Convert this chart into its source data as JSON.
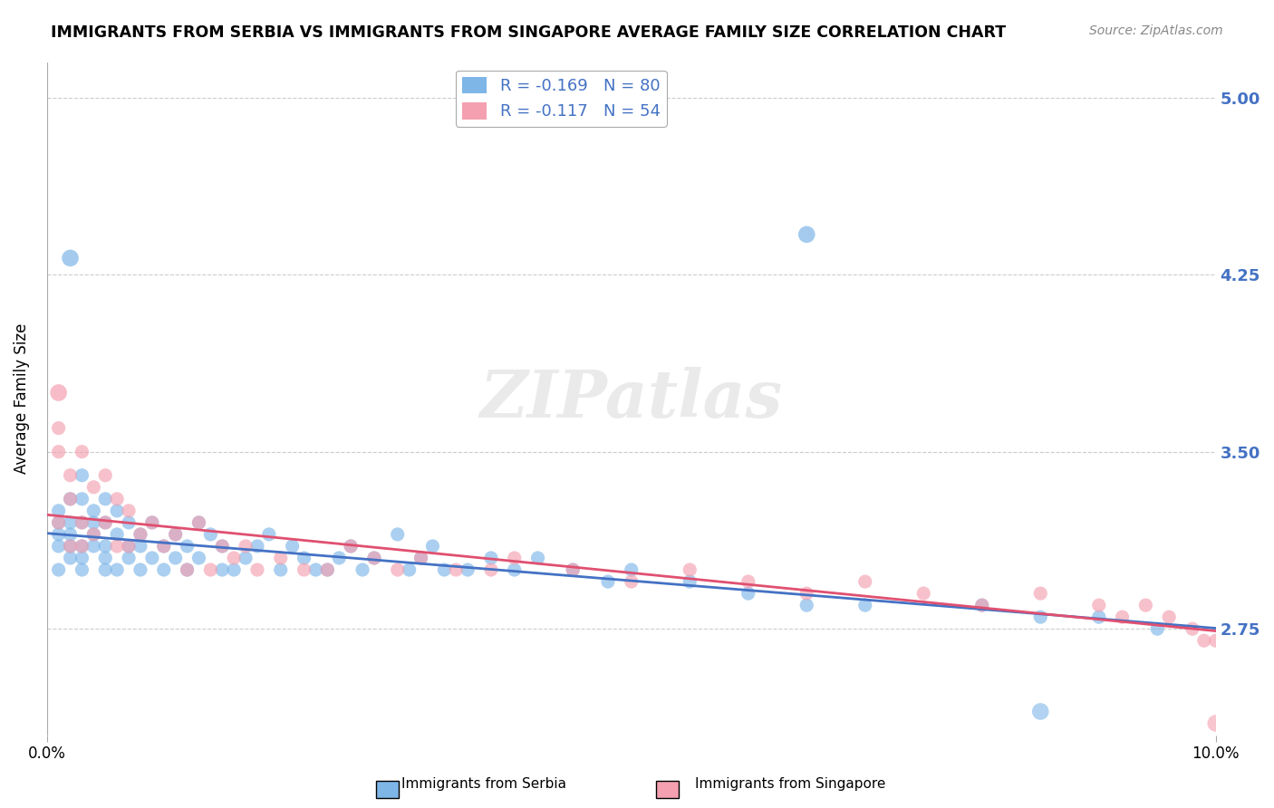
{
  "title": "IMMIGRANTS FROM SERBIA VS IMMIGRANTS FROM SINGAPORE AVERAGE FAMILY SIZE CORRELATION CHART",
  "source_text": "Source: ZipAtlas.com",
  "xlabel": "",
  "ylabel": "Average Family Size",
  "xlim": [
    0.0,
    0.1
  ],
  "ylim": [
    2.3,
    5.15
  ],
  "yticks": [
    2.75,
    3.5,
    4.25,
    5.0
  ],
  "xticks": [
    0.0,
    0.1
  ],
  "xtick_labels": [
    "0.0%",
    "10.0%"
  ],
  "serbia_color": "#7EB6E8",
  "singapore_color": "#F4A0B0",
  "serbia_line_color": "#4472C4",
  "singapore_line_color": "#E05070",
  "serbia_label": "Immigrants from Serbia",
  "singapore_label": "Immigrants from Singapore",
  "serbia_R": -0.169,
  "serbia_N": 80,
  "singapore_R": -0.117,
  "singapore_N": 54,
  "serbia_x": [
    0.001,
    0.001,
    0.001,
    0.001,
    0.001,
    0.002,
    0.002,
    0.002,
    0.002,
    0.002,
    0.003,
    0.003,
    0.003,
    0.003,
    0.003,
    0.003,
    0.004,
    0.004,
    0.004,
    0.004,
    0.005,
    0.005,
    0.005,
    0.005,
    0.005,
    0.006,
    0.006,
    0.006,
    0.007,
    0.007,
    0.007,
    0.008,
    0.008,
    0.008,
    0.009,
    0.009,
    0.01,
    0.01,
    0.011,
    0.011,
    0.012,
    0.012,
    0.013,
    0.013,
    0.014,
    0.015,
    0.015,
    0.016,
    0.017,
    0.018,
    0.019,
    0.02,
    0.021,
    0.022,
    0.023,
    0.024,
    0.025,
    0.026,
    0.027,
    0.028,
    0.03,
    0.031,
    0.032,
    0.033,
    0.034,
    0.036,
    0.038,
    0.04,
    0.042,
    0.045,
    0.048,
    0.05,
    0.055,
    0.06,
    0.065,
    0.07,
    0.08,
    0.085,
    0.09,
    0.095
  ],
  "serbia_y": [
    3.2,
    3.0,
    3.1,
    3.15,
    3.25,
    3.3,
    3.2,
    3.1,
    3.05,
    3.15,
    3.3,
    3.4,
    3.1,
    3.2,
    3.05,
    3.0,
    3.2,
    3.15,
    3.25,
    3.1,
    3.3,
    3.2,
    3.1,
    3.05,
    3.0,
    3.25,
    3.15,
    3.0,
    3.2,
    3.1,
    3.05,
    3.15,
    3.0,
    3.1,
    3.2,
    3.05,
    3.1,
    3.0,
    3.15,
    3.05,
    3.1,
    3.0,
    3.05,
    3.2,
    3.15,
    3.1,
    3.0,
    3.0,
    3.05,
    3.1,
    3.15,
    3.0,
    3.1,
    3.05,
    3.0,
    3.0,
    3.05,
    3.1,
    3.0,
    3.05,
    3.15,
    3.0,
    3.05,
    3.1,
    3.0,
    3.0,
    3.05,
    3.0,
    3.05,
    3.0,
    2.95,
    3.0,
    2.95,
    2.9,
    2.85,
    2.85,
    2.85,
    2.8,
    2.8,
    2.75
  ],
  "singapore_x": [
    0.001,
    0.001,
    0.001,
    0.002,
    0.002,
    0.002,
    0.003,
    0.003,
    0.003,
    0.004,
    0.004,
    0.005,
    0.005,
    0.006,
    0.006,
    0.007,
    0.007,
    0.008,
    0.009,
    0.01,
    0.011,
    0.012,
    0.013,
    0.014,
    0.015,
    0.016,
    0.017,
    0.018,
    0.02,
    0.022,
    0.024,
    0.026,
    0.028,
    0.03,
    0.032,
    0.035,
    0.038,
    0.04,
    0.045,
    0.05,
    0.055,
    0.06,
    0.065,
    0.07,
    0.075,
    0.08,
    0.085,
    0.09,
    0.092,
    0.094,
    0.096,
    0.098,
    0.099,
    0.1
  ],
  "singapore_y": [
    3.5,
    3.2,
    3.6,
    3.3,
    3.4,
    3.1,
    3.5,
    3.2,
    3.1,
    3.35,
    3.15,
    3.4,
    3.2,
    3.3,
    3.1,
    3.25,
    3.1,
    3.15,
    3.2,
    3.1,
    3.15,
    3.0,
    3.2,
    3.0,
    3.1,
    3.05,
    3.1,
    3.0,
    3.05,
    3.0,
    3.0,
    3.1,
    3.05,
    3.0,
    3.05,
    3.0,
    3.0,
    3.05,
    3.0,
    2.95,
    3.0,
    2.95,
    2.9,
    2.95,
    2.9,
    2.85,
    2.9,
    2.85,
    2.8,
    2.85,
    2.8,
    2.75,
    2.7,
    2.7
  ],
  "background_color": "#FFFFFF",
  "grid_color": "#CCCCCC",
  "watermark_text": "ZIPatlas",
  "watermark_color": "#DDDDDD"
}
